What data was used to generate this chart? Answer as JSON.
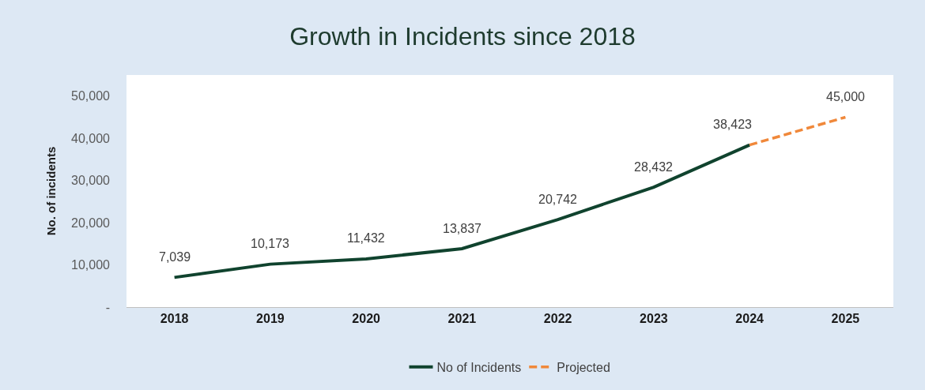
{
  "chart_data": {
    "type": "line",
    "title": "Growth in Incidents since 2018",
    "ylabel": "No. of incidents",
    "categories": [
      "2018",
      "2019",
      "2020",
      "2021",
      "2022",
      "2023",
      "2024",
      "2025"
    ],
    "series": [
      {
        "name": "No of Incidents",
        "color": "#10432e",
        "line_style": "solid",
        "values": [
          7039,
          10173,
          11432,
          13837,
          20742,
          28432,
          38423,
          null
        ],
        "value_labels": [
          "7,039",
          "10,173",
          "11,432",
          "13,837",
          "20,742",
          "28,432",
          "38,423",
          null
        ]
      },
      {
        "name": "Projected",
        "color": "#f0883a",
        "line_style": "dashed",
        "values": [
          null,
          null,
          null,
          null,
          null,
          null,
          38423,
          45000
        ],
        "value_labels": [
          null,
          null,
          null,
          null,
          null,
          null,
          null,
          "45,000"
        ]
      }
    ],
    "ylim": [
      0,
      55000
    ],
    "yticks": [
      {
        "value": 0,
        "label": "-"
      },
      {
        "value": 10000,
        "label": "10,000"
      },
      {
        "value": 20000,
        "label": "20,000"
      },
      {
        "value": 30000,
        "label": "30,000"
      },
      {
        "value": 40000,
        "label": "40,000"
      },
      {
        "value": 50000,
        "label": "50,000"
      }
    ],
    "legend": "bottom",
    "marker": "none"
  }
}
